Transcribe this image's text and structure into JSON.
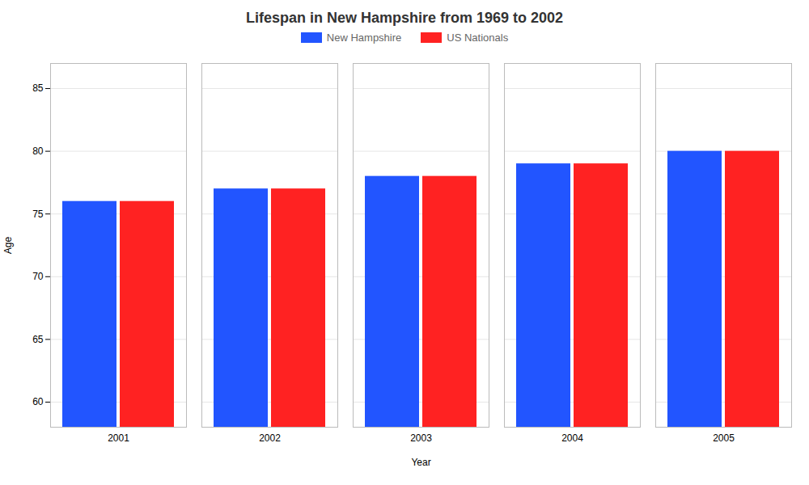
{
  "chart_data": {
    "type": "bar",
    "title": "Lifespan in New Hampshire from 1969 to 2002",
    "xlabel": "Year",
    "ylabel": "Age",
    "categories": [
      "2001",
      "2002",
      "2003",
      "2004",
      "2005"
    ],
    "series": [
      {
        "name": "New Hampshire",
        "color": "#2255ff",
        "values": [
          76,
          77,
          78,
          79,
          80
        ]
      },
      {
        "name": "US Nationals",
        "color": "#ff2222",
        "values": [
          76,
          77,
          78,
          79,
          80
        ]
      }
    ],
    "ylim": [
      58,
      87
    ],
    "yticks": [
      60,
      65,
      70,
      75,
      80,
      85
    ],
    "grid": true,
    "legend": "top"
  }
}
